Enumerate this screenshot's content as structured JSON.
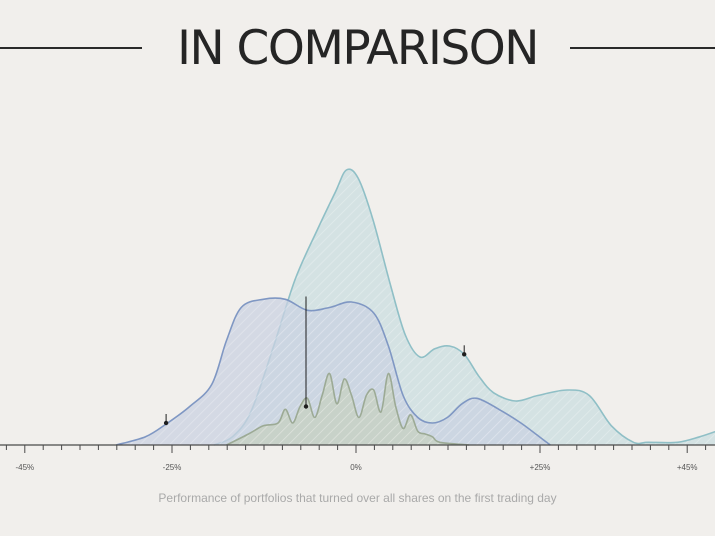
{
  "title": "IN COMPARISON",
  "caption": "Performance of portfolios that turned over all shares on the first trading day",
  "chart_data": {
    "type": "area",
    "xlim": [
      -50,
      50
    ],
    "ylim": [
      0,
      1
    ],
    "grid": false,
    "x_ticks": [
      {
        "value": -45,
        "label": "-45%"
      },
      {
        "value": -25,
        "label": "-25%"
      },
      {
        "value": 0,
        "label": "0%"
      },
      {
        "value": 25,
        "label": "+25%"
      },
      {
        "value": 45,
        "label": "+45%"
      }
    ],
    "minor_tick_step": 2.5,
    "series": [
      {
        "fill": "#c9dde0",
        "stroke": "#8fbfc6",
        "points": [
          [
            -19.3,
            0
          ],
          [
            -16.8,
            0.03
          ],
          [
            -14.3,
            0.12
          ],
          [
            -11.3,
            0.35
          ],
          [
            -8.3,
            0.6
          ],
          [
            -5.3,
            0.78
          ],
          [
            -2.8,
            0.92
          ],
          [
            -1.3,
            1.0
          ],
          [
            0.3,
            0.97
          ],
          [
            2.3,
            0.82
          ],
          [
            4.7,
            0.58
          ],
          [
            6.7,
            0.4
          ],
          [
            8.7,
            0.32
          ],
          [
            10.7,
            0.35
          ],
          [
            12.7,
            0.36
          ],
          [
            14.7,
            0.33
          ],
          [
            16.7,
            0.25
          ],
          [
            18.7,
            0.19
          ],
          [
            21.7,
            0.16
          ],
          [
            24.7,
            0.18
          ],
          [
            28.7,
            0.2
          ],
          [
            31.7,
            0.18
          ],
          [
            34.7,
            0.07
          ],
          [
            37.7,
            0.01
          ],
          [
            39.7,
            0.01
          ],
          [
            43.7,
            0.01
          ],
          [
            46.7,
            0.03
          ],
          [
            50,
            0.06
          ]
        ]
      },
      {
        "fill": "#c9d2e2",
        "stroke": "#7f97c3",
        "points": [
          [
            -32.6,
            0
          ],
          [
            -28.6,
            0.03
          ],
          [
            -25.6,
            0.08
          ],
          [
            -22.6,
            0.14
          ],
          [
            -19.6,
            0.22
          ],
          [
            -17.6,
            0.38
          ],
          [
            -15.6,
            0.5
          ],
          [
            -12.6,
            0.53
          ],
          [
            -9.6,
            0.53
          ],
          [
            -6.6,
            0.49
          ],
          [
            -3.6,
            0.5
          ],
          [
            -0.6,
            0.52
          ],
          [
            2.4,
            0.48
          ],
          [
            4.4,
            0.36
          ],
          [
            6.4,
            0.18
          ],
          [
            8.4,
            0.1
          ],
          [
            10.4,
            0.08
          ],
          [
            12.4,
            0.1
          ],
          [
            14.4,
            0.15
          ],
          [
            16.4,
            0.17
          ],
          [
            19.4,
            0.13
          ],
          [
            22.4,
            0.08
          ],
          [
            25.4,
            0.02
          ],
          [
            26.4,
            0
          ]
        ]
      },
      {
        "fill": "#c7d0c0",
        "stroke": "#9caa95",
        "points": [
          [
            -17.6,
            0
          ],
          [
            -14.6,
            0.04
          ],
          [
            -12.6,
            0.07
          ],
          [
            -10.6,
            0.08
          ],
          [
            -9.6,
            0.13
          ],
          [
            -8.6,
            0.08
          ],
          [
            -7.6,
            0.14
          ],
          [
            -6.6,
            0.17
          ],
          [
            -5.6,
            0.1
          ],
          [
            -4.6,
            0.18
          ],
          [
            -3.6,
            0.26
          ],
          [
            -2.6,
            0.15
          ],
          [
            -1.6,
            0.24
          ],
          [
            -0.6,
            0.18
          ],
          [
            0.4,
            0.1
          ],
          [
            1.4,
            0.18
          ],
          [
            2.4,
            0.2
          ],
          [
            3.4,
            0.12
          ],
          [
            4.4,
            0.26
          ],
          [
            5.4,
            0.14
          ],
          [
            6.4,
            0.06
          ],
          [
            7.4,
            0.11
          ],
          [
            8.4,
            0.05
          ],
          [
            9.4,
            0.04
          ],
          [
            10.4,
            0.03
          ],
          [
            11.4,
            0.01
          ],
          [
            15.4,
            0
          ]
        ]
      }
    ],
    "markers": [
      {
        "x": -25.8,
        "y": 0.08
      },
      {
        "x": -6.8,
        "y": 0.14
      },
      {
        "x": 14.7,
        "y": 0.33
      }
    ],
    "colors": {
      "axis": "#4a4a4a",
      "text": "#555555",
      "marker": "#1e1e1e",
      "hatch": "#ffffff"
    }
  }
}
